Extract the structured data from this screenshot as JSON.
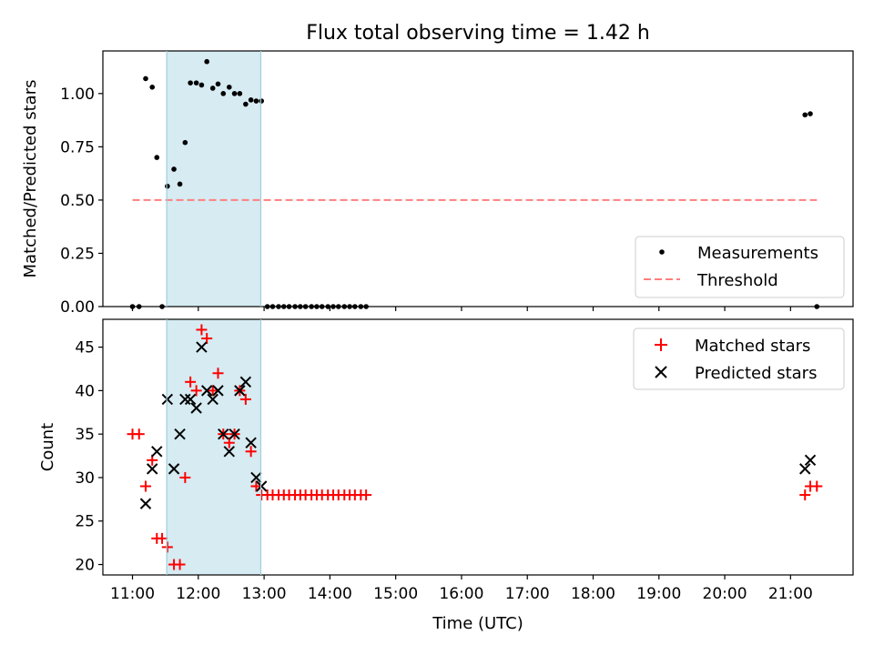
{
  "chart_data": {
    "title": "Flux total observing time = 1.42 h",
    "xlabel": "Time (UTC)",
    "x_units": "hours (UTC)",
    "xlim": [
      10.55,
      21.95
    ],
    "xticks": [
      11,
      12,
      13,
      14,
      15,
      16,
      17,
      18,
      19,
      20,
      21
    ],
    "xtick_labels": [
      "11:00",
      "12:00",
      "13:00",
      "14:00",
      "15:00",
      "16:00",
      "17:00",
      "18:00",
      "19:00",
      "20:00",
      "21:00"
    ],
    "highlight_span": {
      "x_start": 11.52,
      "x_end": 12.95,
      "color": "#add8e6"
    },
    "panels": [
      {
        "type": "scatter",
        "ylabel": "Matched/Predicted stars",
        "ylim": [
          0,
          1.2
        ],
        "yticks": [
          0.0,
          0.25,
          0.5,
          0.75,
          1.0
        ],
        "ytick_labels": [
          "0.00",
          "0.25",
          "0.50",
          "0.75",
          "1.00"
        ],
        "legend_position": "lower-right",
        "series": [
          {
            "name": "Measurements",
            "marker": "dot",
            "color": "#000000",
            "points": [
              [
                11.0,
                0.0
              ],
              [
                11.1,
                0.0
              ],
              [
                11.2,
                1.07
              ],
              [
                11.3,
                1.03
              ],
              [
                11.37,
                0.7
              ],
              [
                11.45,
                0.0
              ],
              [
                11.53,
                0.565
              ],
              [
                11.63,
                0.645
              ],
              [
                11.72,
                0.575
              ],
              [
                11.8,
                0.77
              ],
              [
                11.88,
                1.05
              ],
              [
                11.97,
                1.05
              ],
              [
                12.05,
                1.04
              ],
              [
                12.13,
                1.15
              ],
              [
                12.22,
                1.025
              ],
              [
                12.3,
                1.045
              ],
              [
                12.38,
                1.0
              ],
              [
                12.47,
                1.03
              ],
              [
                12.55,
                1.0
              ],
              [
                12.63,
                1.0
              ],
              [
                12.72,
                0.95
              ],
              [
                12.8,
                0.97
              ],
              [
                12.88,
                0.965
              ],
              [
                12.96,
                0.965
              ],
              [
                13.05,
                0.0
              ],
              [
                13.13,
                0.0
              ],
              [
                13.22,
                0.0
              ],
              [
                13.3,
                0.0
              ],
              [
                13.38,
                0.0
              ],
              [
                13.47,
                0.0
              ],
              [
                13.55,
                0.0
              ],
              [
                13.63,
                0.0
              ],
              [
                13.72,
                0.0
              ],
              [
                13.8,
                0.0
              ],
              [
                13.88,
                0.0
              ],
              [
                13.97,
                0.0
              ],
              [
                14.05,
                0.0
              ],
              [
                14.13,
                0.0
              ],
              [
                14.22,
                0.0
              ],
              [
                14.3,
                0.0
              ],
              [
                14.38,
                0.0
              ],
              [
                14.47,
                0.0
              ],
              [
                14.55,
                0.0
              ],
              [
                21.22,
                0.9
              ],
              [
                21.3,
                0.905
              ],
              [
                21.4,
                0.0
              ]
            ]
          },
          {
            "name": "Threshold",
            "type": "line",
            "style": "dashed",
            "color": "#ff7f7f",
            "points": [
              [
                11.0,
                0.5
              ],
              [
                21.4,
                0.5
              ]
            ]
          }
        ]
      },
      {
        "type": "scatter",
        "ylabel": "Count",
        "ylim": [
          18.8,
          48.2
        ],
        "yticks": [
          20,
          25,
          30,
          35,
          40,
          45
        ],
        "ytick_labels": [
          "20",
          "25",
          "30",
          "35",
          "40",
          "45"
        ],
        "legend_position": "top-right",
        "series": [
          {
            "name": "Matched stars",
            "marker": "plus",
            "color": "#ff0000",
            "points": [
              [
                11.0,
                35
              ],
              [
                11.1,
                35
              ],
              [
                11.2,
                29
              ],
              [
                11.3,
                32
              ],
              [
                11.37,
                23
              ],
              [
                11.45,
                23
              ],
              [
                11.53,
                22
              ],
              [
                11.63,
                20
              ],
              [
                11.72,
                20
              ],
              [
                11.8,
                30
              ],
              [
                11.88,
                41
              ],
              [
                11.97,
                40
              ],
              [
                12.05,
                47
              ],
              [
                12.13,
                46
              ],
              [
                12.22,
                40
              ],
              [
                12.3,
                42
              ],
              [
                12.38,
                35
              ],
              [
                12.47,
                34
              ],
              [
                12.55,
                35
              ],
              [
                12.63,
                40
              ],
              [
                12.72,
                39
              ],
              [
                12.8,
                33
              ],
              [
                12.88,
                29
              ],
              [
                12.96,
                28
              ],
              [
                13.05,
                28
              ],
              [
                13.13,
                28
              ],
              [
                13.22,
                28
              ],
              [
                13.3,
                28
              ],
              [
                13.38,
                28
              ],
              [
                13.47,
                28
              ],
              [
                13.55,
                28
              ],
              [
                13.63,
                28
              ],
              [
                13.72,
                28
              ],
              [
                13.8,
                28
              ],
              [
                13.88,
                28
              ],
              [
                13.97,
                28
              ],
              [
                14.05,
                28
              ],
              [
                14.13,
                28
              ],
              [
                14.22,
                28
              ],
              [
                14.3,
                28
              ],
              [
                14.38,
                28
              ],
              [
                14.47,
                28
              ],
              [
                14.55,
                28
              ],
              [
                21.22,
                28
              ],
              [
                21.3,
                29
              ],
              [
                21.4,
                29
              ]
            ]
          },
          {
            "name": "Predicted stars",
            "marker": "x",
            "color": "#000000",
            "points": [
              [
                11.2,
                27
              ],
              [
                11.3,
                31
              ],
              [
                11.37,
                33
              ],
              [
                11.53,
                39
              ],
              [
                11.63,
                31
              ],
              [
                11.72,
                35
              ],
              [
                11.8,
                39
              ],
              [
                11.88,
                39
              ],
              [
                11.97,
                38
              ],
              [
                12.05,
                45
              ],
              [
                12.13,
                40
              ],
              [
                12.22,
                39
              ],
              [
                12.3,
                40
              ],
              [
                12.38,
                35
              ],
              [
                12.47,
                33
              ],
              [
                12.55,
                35
              ],
              [
                12.63,
                40
              ],
              [
                12.72,
                41
              ],
              [
                12.8,
                34
              ],
              [
                12.88,
                30
              ],
              [
                12.96,
                29
              ],
              [
                21.22,
                31
              ],
              [
                21.3,
                32
              ]
            ]
          }
        ]
      }
    ]
  }
}
